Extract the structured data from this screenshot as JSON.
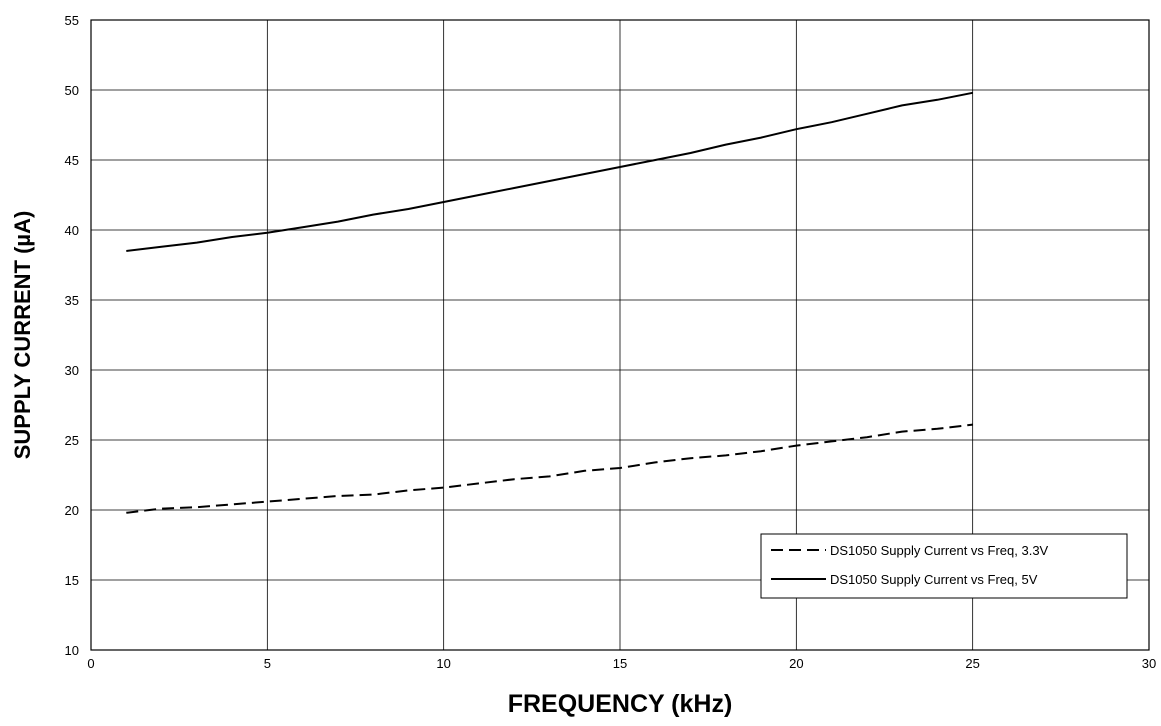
{
  "chart_data": {
    "type": "line",
    "title": "",
    "xlabel": "FREQUENCY (kHz)",
    "ylabel": "SUPPLY CURRENT (µA)",
    "xlim": [
      0,
      30
    ],
    "ylim": [
      10,
      55
    ],
    "xticks": [
      0,
      5,
      10,
      15,
      20,
      25,
      30
    ],
    "yticks": [
      10,
      15,
      20,
      25,
      30,
      35,
      40,
      45,
      50,
      55
    ],
    "grid": true,
    "legend_position": "bottom-right",
    "series": [
      {
        "name": "DS1050 Supply Current vs Freq, 3.3V",
        "style": "dashed",
        "color": "#000000",
        "x": [
          1,
          2,
          3,
          4,
          5,
          6,
          7,
          8,
          9,
          10,
          11,
          12,
          13,
          14,
          15,
          16,
          17,
          18,
          19,
          20,
          21,
          22,
          23,
          24,
          25
        ],
        "y": [
          19.8,
          20.1,
          20.2,
          20.4,
          20.6,
          20.8,
          21.0,
          21.1,
          21.4,
          21.6,
          21.9,
          22.2,
          22.4,
          22.8,
          23.0,
          23.4,
          23.7,
          23.9,
          24.2,
          24.6,
          24.9,
          25.2,
          25.6,
          25.8,
          26.1
        ]
      },
      {
        "name": "DS1050 Supply Current vs Freq, 5V",
        "style": "solid",
        "color": "#000000",
        "x": [
          1,
          2,
          3,
          4,
          5,
          6,
          7,
          8,
          9,
          10,
          11,
          12,
          13,
          14,
          15,
          16,
          17,
          18,
          19,
          20,
          21,
          22,
          23,
          24,
          25
        ],
        "y": [
          38.5,
          38.8,
          39.1,
          39.5,
          39.8,
          40.2,
          40.6,
          41.1,
          41.5,
          42.0,
          42.5,
          43.0,
          43.5,
          44.0,
          44.5,
          45.0,
          45.5,
          46.1,
          46.6,
          47.2,
          47.7,
          48.3,
          48.9,
          49.3,
          49.8
        ]
      }
    ]
  }
}
